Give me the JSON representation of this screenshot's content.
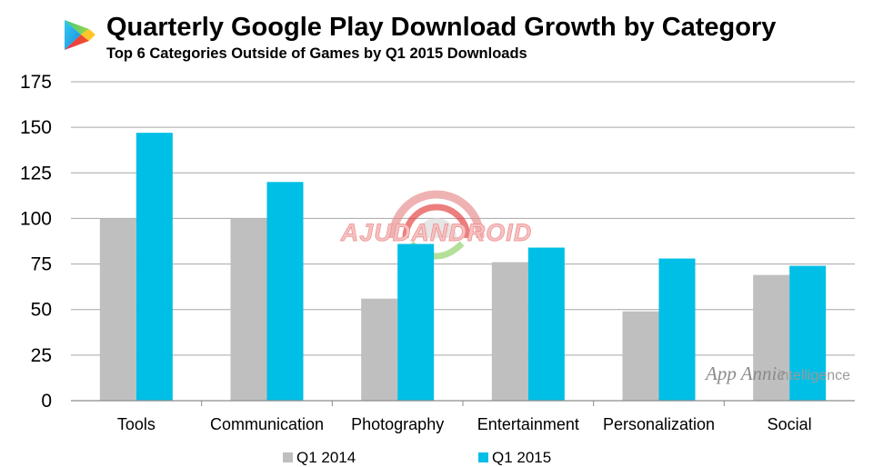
{
  "chart_data": {
    "type": "bar",
    "title": "Quarterly Google Play Download Growth by Category",
    "subtitle": "Top 6 Categories Outside of Games by Q1 2015 Downloads",
    "categories": [
      "Tools",
      "Communication",
      "Photography",
      "Entertainment",
      "Personalization",
      "Social"
    ],
    "series": [
      {
        "name": "Q1 2014",
        "color": "#bfbfbf",
        "values": [
          100,
          100,
          56,
          76,
          49,
          69
        ]
      },
      {
        "name": "Q1 2015",
        "color": "#00bfe6",
        "values": [
          147,
          120,
          86,
          84,
          78,
          74
        ]
      }
    ],
    "ylim": [
      0,
      175
    ],
    "yticks": [
      0,
      25,
      50,
      75,
      100,
      125,
      150,
      175
    ],
    "xlabel": "",
    "ylabel": "",
    "grid": true,
    "legend_position": "bottom"
  },
  "branding": {
    "play_logo_icon": "google-play-triangle",
    "watermark": "AJUDANDROID",
    "attribution_main": "App Annie",
    "attribution_sub": "intelligence"
  }
}
